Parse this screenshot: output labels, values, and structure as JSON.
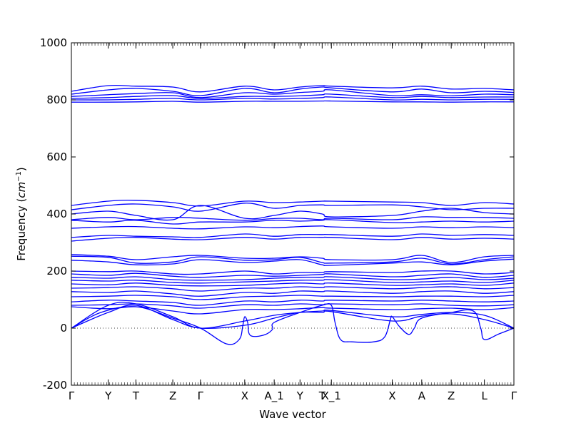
{
  "chart_data": {
    "type": "line",
    "xlabel": "Wave vector",
    "ylabel_text": "Frequency (",
    "ylabel_unit": "cm",
    "ylabel_exp": "−1",
    "ylabel_close": ")",
    "ylim": [
      -200,
      1000
    ],
    "yticks": [
      -200,
      0,
      200,
      400,
      600,
      800,
      1000
    ],
    "zero_line": 0,
    "grid": false,
    "xlim": [
      0,
      12
    ],
    "high_symmetry_points": [
      {
        "label": "Γ",
        "x": 0
      },
      {
        "label": "Y",
        "x": 1
      },
      {
        "label": "T",
        "x": 1.75
      },
      {
        "label": "Z",
        "x": 2.75
      },
      {
        "label": "Γ",
        "x": 3.5
      },
      {
        "label": "X",
        "x": 4.7
      },
      {
        "label": "A_1",
        "x": 5.5
      },
      {
        "label": "Y",
        "x": 6.2
      },
      {
        "label": "T",
        "x": 6.8
      },
      {
        "label": "X_1",
        "x": 7.05
      },
      {
        "label": "X",
        "x": 8.7
      },
      {
        "label": "A",
        "x": 9.5
      },
      {
        "label": "Z",
        "x": 10.3
      },
      {
        "label": "L",
        "x": 11.2
      },
      {
        "label": "Γ",
        "x": 12
      }
    ],
    "series": [
      {
        "x": [
          0,
          1,
          1.75,
          2.75,
          3.5,
          4.7,
          5.5,
          6.2,
          6.8,
          7.05,
          8.7,
          9.5,
          10.3,
          11.2,
          12
        ],
        "values": [
          830,
          850,
          848,
          845,
          828,
          848,
          835,
          845,
          850,
          848,
          842,
          848,
          838,
          840,
          835
        ]
      },
      {
        "x": [
          0,
          1,
          1.75,
          2.75,
          3.5,
          4.7,
          5.5,
          6.2,
          6.8,
          7.05,
          8.7,
          9.5,
          10.3,
          11.2,
          12
        ],
        "values": [
          820,
          835,
          840,
          830,
          815,
          840,
          825,
          838,
          845,
          842,
          828,
          838,
          825,
          830,
          826
        ]
      },
      {
        "x": [
          0,
          1,
          1.75,
          2.75,
          3.5,
          4.7,
          5.5,
          6.2,
          6.8,
          7.05,
          8.7,
          9.5,
          10.3,
          11.2,
          12
        ],
        "values": [
          812,
          818,
          822,
          825,
          808,
          825,
          820,
          826,
          830,
          835,
          815,
          818,
          814,
          820,
          818
        ]
      },
      {
        "x": [
          0,
          1,
          1.75,
          2.75,
          3.5,
          4.7,
          5.5,
          6.2,
          6.8,
          7.05,
          8.7,
          9.5,
          10.3,
          11.2,
          12
        ],
        "values": [
          805,
          808,
          812,
          815,
          805,
          812,
          812,
          814,
          818,
          820,
          808,
          812,
          808,
          810,
          810
        ]
      },
      {
        "x": [
          0,
          1,
          1.75,
          2.75,
          3.5,
          4.7,
          5.5,
          6.2,
          6.8,
          7.05,
          8.7,
          9.5,
          10.3,
          11.2,
          12
        ],
        "values": [
          800,
          800,
          802,
          805,
          800,
          805,
          803,
          805,
          808,
          810,
          800,
          802,
          800,
          802,
          802
        ]
      },
      {
        "x": [
          0,
          1,
          1.75,
          2.75,
          3.5,
          4.7,
          5.5,
          6.2,
          6.8,
          7.05,
          8.7,
          9.5,
          10.3,
          11.2,
          12
        ],
        "values": [
          792,
          792,
          793,
          795,
          792,
          795,
          795,
          795,
          796,
          796,
          793,
          793,
          792,
          793,
          793
        ]
      },
      {
        "x": [
          0,
          1,
          1.75,
          2.75,
          3.5,
          4.7,
          5.5,
          6.2,
          6.8,
          7.05,
          8.7,
          9.5,
          10.3,
          11.2,
          12
        ],
        "values": [
          430,
          445,
          448,
          440,
          428,
          445,
          440,
          442,
          445,
          445,
          442,
          440,
          430,
          440,
          435
        ]
      },
      {
        "x": [
          0,
          1,
          1.75,
          2.75,
          3.5,
          4.7,
          5.5,
          6.2,
          6.8,
          7.05,
          8.7,
          9.5,
          10.3,
          11.2,
          12
        ],
        "values": [
          415,
          430,
          435,
          425,
          410,
          438,
          420,
          430,
          432,
          430,
          432,
          425,
          415,
          420,
          420
        ]
      },
      {
        "x": [
          0,
          1,
          1.75,
          2.75,
          3.5,
          4.7,
          5.5,
          6.2,
          6.8,
          7.05,
          8.7,
          9.5,
          10.3,
          11.2,
          12
        ],
        "values": [
          400,
          410,
          395,
          380,
          430,
          385,
          395,
          410,
          400,
          390,
          395,
          410,
          420,
          405,
          400
        ]
      },
      {
        "x": [
          0,
          1,
          1.75,
          2.75,
          3.5,
          4.7,
          5.5,
          6.2,
          6.8,
          7.05,
          8.7,
          9.5,
          10.3,
          11.2,
          12
        ],
        "values": [
          380,
          388,
          380,
          388,
          385,
          378,
          384,
          385,
          380,
          385,
          380,
          390,
          388,
          388,
          385
        ]
      },
      {
        "x": [
          0,
          1,
          1.75,
          2.75,
          3.5,
          4.7,
          5.5,
          6.2,
          6.8,
          7.05,
          8.7,
          9.5,
          10.3,
          11.2,
          12
        ],
        "values": [
          378,
          372,
          378,
          365,
          372,
          372,
          378,
          375,
          378,
          380,
          370,
          372,
          375,
          372,
          375
        ]
      },
      {
        "x": [
          0,
          1,
          1.75,
          2.75,
          3.5,
          4.7,
          5.5,
          6.2,
          6.8,
          7.05,
          8.7,
          9.5,
          10.3,
          11.2,
          12
        ],
        "values": [
          350,
          355,
          356,
          350,
          348,
          355,
          352,
          356,
          358,
          355,
          350,
          355,
          352,
          355,
          352
        ]
      },
      {
        "x": [
          0,
          1,
          1.75,
          2.75,
          3.5,
          4.7,
          5.5,
          6.2,
          6.8,
          7.05,
          8.7,
          9.5,
          10.3,
          11.2,
          12
        ],
        "values": [
          318,
          325,
          322,
          320,
          318,
          330,
          322,
          328,
          328,
          328,
          322,
          330,
          325,
          328,
          325
        ]
      },
      {
        "x": [
          0,
          1,
          1.75,
          2.75,
          3.5,
          4.7,
          5.5,
          6.2,
          6.8,
          7.05,
          8.7,
          9.5,
          10.3,
          11.2,
          12
        ],
        "values": [
          305,
          315,
          318,
          312,
          310,
          318,
          312,
          318,
          318,
          318,
          310,
          318,
          312,
          315,
          312
        ]
      },
      {
        "x": [
          0,
          1,
          1.75,
          2.75,
          3.5,
          4.7,
          5.5,
          6.2,
          6.8,
          7.05,
          8.7,
          9.5,
          10.3,
          11.2,
          12
        ],
        "values": [
          258,
          252,
          240,
          250,
          255,
          245,
          245,
          250,
          245,
          240,
          240,
          255,
          230,
          250,
          255
        ]
      },
      {
        "x": [
          0,
          1,
          1.75,
          2.75,
          3.5,
          4.7,
          5.5,
          6.2,
          6.8,
          7.05,
          8.7,
          9.5,
          10.3,
          11.2,
          12
        ],
        "values": [
          252,
          248,
          228,
          232,
          250,
          238,
          240,
          248,
          230,
          228,
          232,
          245,
          225,
          240,
          250
        ]
      },
      {
        "x": [
          0,
          1,
          1.75,
          2.75,
          3.5,
          4.7,
          5.5,
          6.2,
          6.8,
          7.05,
          8.7,
          9.5,
          10.3,
          11.2,
          12
        ],
        "values": [
          238,
          232,
          222,
          225,
          240,
          230,
          235,
          240,
          222,
          220,
          228,
          232,
          222,
          235,
          242
        ]
      },
      {
        "x": [
          0,
          1,
          1.75,
          2.75,
          3.5,
          4.7,
          5.5,
          6.2,
          6.8,
          7.05,
          8.7,
          9.5,
          10.3,
          11.2,
          12
        ],
        "values": [
          200,
          198,
          200,
          190,
          190,
          200,
          190,
          195,
          195,
          198,
          195,
          200,
          200,
          190,
          195
        ]
      },
      {
        "x": [
          0,
          1,
          1.75,
          2.75,
          3.5,
          4.7,
          5.5,
          6.2,
          6.8,
          7.05,
          8.7,
          9.5,
          10.3,
          11.2,
          12
        ],
        "values": [
          190,
          185,
          192,
          182,
          178,
          185,
          182,
          185,
          188,
          190,
          180,
          185,
          190,
          178,
          185
        ]
      },
      {
        "x": [
          0,
          1,
          1.75,
          2.75,
          3.5,
          4.7,
          5.5,
          6.2,
          6.8,
          7.05,
          8.7,
          9.5,
          10.3,
          11.2,
          12
        ],
        "values": [
          178,
          175,
          180,
          170,
          168,
          170,
          175,
          178,
          178,
          180,
          170,
          172,
          178,
          170,
          175
        ]
      },
      {
        "x": [
          0,
          1,
          1.75,
          2.75,
          3.5,
          4.7,
          5.5,
          6.2,
          6.8,
          7.05,
          8.7,
          9.5,
          10.3,
          11.2,
          12
        ],
        "values": [
          168,
          165,
          168,
          160,
          158,
          162,
          165,
          168,
          168,
          170,
          160,
          162,
          165,
          160,
          168
        ]
      },
      {
        "x": [
          0,
          1,
          1.75,
          2.75,
          3.5,
          4.7,
          5.5,
          6.2,
          6.8,
          7.05,
          8.7,
          9.5,
          10.3,
          11.2,
          12
        ],
        "values": [
          155,
          152,
          158,
          150,
          148,
          150,
          155,
          158,
          155,
          158,
          150,
          152,
          155,
          150,
          158
        ]
      },
      {
        "x": [
          0,
          1,
          1.75,
          2.75,
          3.5,
          4.7,
          5.5,
          6.2,
          6.8,
          7.05,
          8.7,
          9.5,
          10.3,
          11.2,
          12
        ],
        "values": [
          140,
          142,
          145,
          138,
          130,
          140,
          140,
          145,
          142,
          145,
          138,
          142,
          145,
          138,
          142
        ]
      },
      {
        "x": [
          0,
          1,
          1.75,
          2.75,
          3.5,
          4.7,
          5.5,
          6.2,
          6.8,
          7.05,
          8.7,
          9.5,
          10.3,
          11.2,
          12
        ],
        "values": [
          128,
          125,
          130,
          120,
          112,
          125,
          122,
          130,
          128,
          130,
          122,
          128,
          130,
          122,
          128
        ]
      },
      {
        "x": [
          0,
          1,
          1.75,
          2.75,
          3.5,
          4.7,
          5.5,
          6.2,
          6.8,
          7.05,
          8.7,
          9.5,
          10.3,
          11.2,
          12
        ],
        "values": [
          110,
          112,
          115,
          110,
          100,
          110,
          112,
          115,
          112,
          112,
          110,
          112,
          112,
          110,
          115
        ]
      },
      {
        "x": [
          0,
          1,
          1.75,
          2.75,
          3.5,
          4.7,
          5.5,
          6.2,
          6.8,
          7.05,
          8.7,
          9.5,
          10.3,
          11.2,
          12
        ],
        "values": [
          92,
          98,
          95,
          90,
          80,
          95,
          92,
          98,
          95,
          98,
          95,
          98,
          95,
          92,
          95
        ]
      },
      {
        "x": [
          0,
          1,
          1.75,
          2.75,
          3.5,
          4.7,
          5.5,
          6.2,
          6.8,
          7.05,
          8.7,
          9.5,
          10.3,
          11.2,
          12
        ],
        "values": [
          80,
          82,
          85,
          78,
          70,
          82,
          80,
          85,
          82,
          85,
          82,
          85,
          80,
          78,
          82
        ]
      },
      {
        "x": [
          0,
          1,
          1.75,
          2.75,
          3.5,
          4.7,
          5.5,
          6.2,
          6.8,
          7.05,
          8.7,
          9.5,
          10.3,
          11.2,
          12
        ],
        "values": [
          75,
          68,
          75,
          60,
          50,
          65,
          65,
          68,
          72,
          70,
          65,
          68,
          70,
          65,
          72
        ]
      },
      {
        "x": [
          0,
          1,
          1.75,
          2.75,
          3.5,
          4.7,
          5.5,
          6.2,
          6.8,
          7.05,
          8.7,
          9.5,
          10.3,
          11.2,
          12
        ],
        "values": [
          0,
          80,
          85,
          40,
          0,
          25,
          45,
          55,
          60,
          62,
          40,
          48,
          55,
          45,
          0
        ]
      },
      {
        "x": [
          0,
          1,
          1.75,
          2.75,
          3.5,
          4.7,
          5.5,
          6.2,
          6.8,
          7.05,
          8.7,
          9.5,
          10.3,
          11.2,
          12
        ],
        "values": [
          0,
          55,
          80,
          30,
          0,
          10,
          35,
          55,
          55,
          58,
          25,
          42,
          50,
          30,
          0
        ]
      },
      {
        "x": [
          0,
          0.8,
          1.75,
          2.75,
          3.5,
          4.2,
          4.55,
          4.65,
          4.7,
          4.78,
          4.85,
          5.2,
          5.45,
          5.5,
          6.2,
          6.8,
          7.05,
          7.15,
          7.3,
          7.6,
          8.2,
          8.5,
          8.65,
          8.7,
          8.9,
          9.15,
          9.3,
          9.5,
          10.3,
          10.9,
          11.1,
          11.2,
          11.6,
          12
        ],
        "values": [
          0,
          55,
          75,
          35,
          0,
          -55,
          -40,
          10,
          40,
          20,
          -25,
          -25,
          -5,
          20,
          55,
          80,
          80,
          20,
          -40,
          -48,
          -48,
          -30,
          30,
          40,
          5,
          -22,
          0,
          35,
          55,
          60,
          0,
          -40,
          -20,
          0
        ]
      }
    ]
  }
}
